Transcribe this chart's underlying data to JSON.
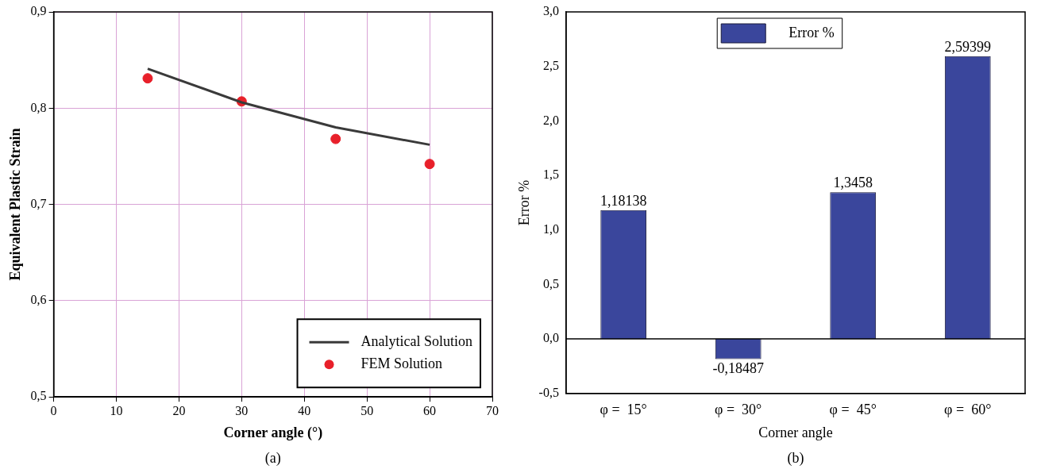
{
  "chart_data": [
    {
      "type": "line",
      "xlabel": "Corner angle (°)",
      "ylabel": "Equivalent Plastic Strain",
      "xlim": [
        0,
        70
      ],
      "xticks": [
        0,
        10,
        20,
        30,
        40,
        50,
        60,
        70
      ],
      "ylim": [
        0.5,
        0.9
      ],
      "yticks": [
        {
          "value": 0.5,
          "label": "0,5"
        },
        {
          "value": 0.6,
          "label": "0,6"
        },
        {
          "value": 0.7,
          "label": "0,7"
        },
        {
          "value": 0.8,
          "label": "0,8"
        },
        {
          "value": 0.9,
          "label": "0,9"
        }
      ],
      "grid": true,
      "legend": "bottom right",
      "x": [
        15,
        30,
        45,
        60
      ],
      "series": [
        {
          "name": "Analytical Solution",
          "type": "line",
          "color": "#3a3a3a",
          "marker": "none",
          "line_style": "solid",
          "values": [
            0.841,
            0.806,
            0.78,
            0.762
          ]
        },
        {
          "name": "FEM Solution",
          "type": "scatter",
          "color": "#e8202a",
          "marker": "circle",
          "values": [
            0.831,
            0.807,
            0.768,
            0.742
          ]
        }
      ],
      "annotations": [
        "(a)"
      ]
    },
    {
      "type": "bar",
      "xlabel": "Corner angle",
      "ylabel": "Error %",
      "categories": [
        "φ =  15°",
        "φ =  30°",
        "φ =  45°",
        "φ =  60°"
      ],
      "ylim": [
        -0.5,
        3
      ],
      "yticks": [
        {
          "value": -0.5,
          "label": "-0,5"
        },
        {
          "value": 0,
          "label": "0,0"
        },
        {
          "value": 0.5,
          "label": "0,5"
        },
        {
          "value": 1,
          "label": "1,0"
        },
        {
          "value": 1.5,
          "label": "1,5"
        },
        {
          "value": 2,
          "label": "2,0"
        },
        {
          "value": 2.5,
          "label": "2,5"
        },
        {
          "value": 3,
          "label": "3,0"
        }
      ],
      "grid": false,
      "legend": "top",
      "ref_lines": [
        {
          "axis": "y",
          "value": 0,
          "color": "#000000"
        }
      ],
      "series": [
        {
          "name": "Error %",
          "color": "#3a469c",
          "values": [
            1.18138,
            -0.18487,
            1.3458,
            2.59399
          ],
          "value_labels": [
            "1,18138",
            "-0,18487",
            "1,3458",
            "2,59399"
          ]
        }
      ],
      "annotations": [
        "(b)"
      ]
    }
  ]
}
